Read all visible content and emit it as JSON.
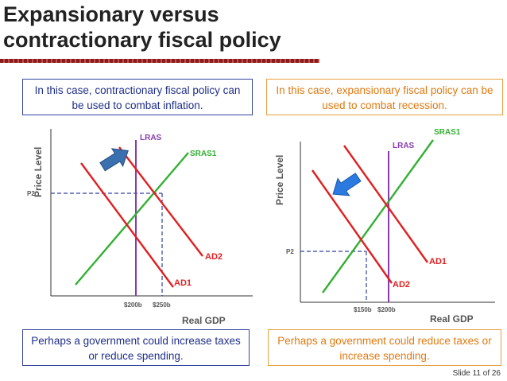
{
  "title": {
    "line1": "Expansionary versus",
    "line2": "contractionary fiscal policy"
  },
  "left_panel": {
    "top_note": "In this case, contractionary fiscal policy can be used to combat inflation.",
    "bottom_note": "Perhaps a government could increase taxes or reduce spending.",
    "graph": {
      "ylabel": "Price Level",
      "xlabel": "Real GDP",
      "lras": "LRAS",
      "sras": "SRAS1",
      "ad_upper": "AD2",
      "ad_lower": "AD1",
      "p_label": "P2",
      "x1": "$200b",
      "x2": "$250b"
    },
    "arrow_color": "#3a6fb0"
  },
  "right_panel": {
    "top_note": "In this case, expansionary fiscal policy can be used to combat recession.",
    "bottom_note": "Perhaps a government could reduce taxes or increase spending.",
    "graph": {
      "ylabel": "Price Level",
      "xlabel": "Real GDP",
      "lras": "LRAS",
      "sras": "SRAS1",
      "ad_upper": "AD1",
      "ad_lower": "AD2",
      "p_label": "P2",
      "x1": "$150b",
      "x2": "$200b"
    },
    "arrow_color": "#2a7ae0"
  },
  "colors": {
    "ad": "#e02020",
    "sras": "#33b033",
    "lras": "#8a3ab0",
    "guide": "#3040a0",
    "label": "#555555"
  },
  "footer": "Slide 11 of 26"
}
